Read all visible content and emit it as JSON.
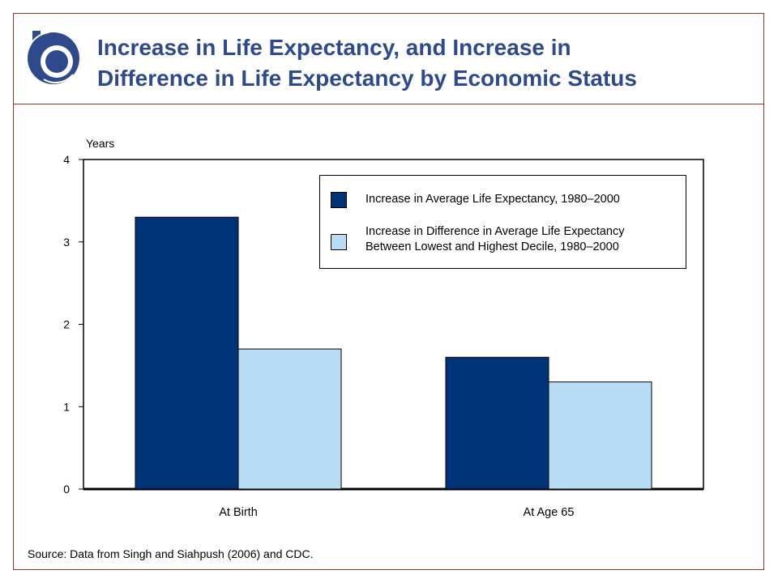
{
  "header": {
    "title_line1": "Increase in Life Expectancy, and Increase in",
    "title_line2": "Difference in Life Expectancy by Economic Status",
    "logo_icon": "cbo-logo-icon"
  },
  "colors": {
    "dark": "#003478",
    "light": "#b8dcf3",
    "title": "#2e4a8c",
    "frame": "#8b3a2b"
  },
  "chart_data": {
    "type": "bar",
    "ylabel": "Years",
    "ylim": [
      0,
      4
    ],
    "yticks": [
      "0",
      "1",
      "2",
      "3",
      "4"
    ],
    "categories": [
      "At Birth",
      "At Age 65"
    ],
    "series": [
      {
        "name": "Increase in Average Life Expectancy, 1980–2000",
        "values": [
          3.3,
          1.6
        ]
      },
      {
        "name_line1": "Increase in Difference in Average Life Expectancy",
        "name_line2": "Between Lowest and Highest Decile, 1980–2000",
        "values": [
          1.7,
          1.3
        ]
      }
    ],
    "legend_position": "top-right",
    "grid": false
  },
  "footer": {
    "source": "Source: Data from Singh and Siahpush (2006) and CDC."
  }
}
